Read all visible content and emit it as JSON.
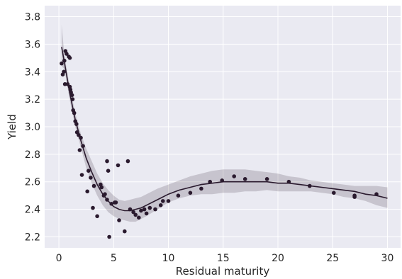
{
  "chart_data": {
    "type": "scatter",
    "xlabel": "Residual maturity",
    "ylabel": "Yield",
    "xlim": [
      -1.3,
      31.2
    ],
    "ylim": [
      2.12,
      3.88
    ],
    "xticks": [
      0,
      5,
      10,
      15,
      20,
      25,
      30
    ],
    "yticks": [
      2.2,
      2.4,
      2.6,
      2.8,
      3.0,
      3.2,
      3.4,
      3.6,
      3.8
    ],
    "grid": true,
    "style": "seaborn-darkgrid",
    "colors": {
      "background": "#eaeaf2",
      "points": "#2a1a2e",
      "line": "#2a1a2e",
      "band": "#2a1a2e"
    },
    "points": [
      [
        0.25,
        3.46
      ],
      [
        0.35,
        3.38
      ],
      [
        0.45,
        3.4
      ],
      [
        0.5,
        3.48
      ],
      [
        0.55,
        3.31
      ],
      [
        0.6,
        3.55
      ],
      [
        0.7,
        3.53
      ],
      [
        0.8,
        3.31
      ],
      [
        0.9,
        3.51
      ],
      [
        1.0,
        3.5
      ],
      [
        1.0,
        3.29
      ],
      [
        1.05,
        3.27
      ],
      [
        1.1,
        3.25
      ],
      [
        1.2,
        3.23
      ],
      [
        1.25,
        3.2
      ],
      [
        1.3,
        3.12
      ],
      [
        1.4,
        3.1
      ],
      [
        1.5,
        3.04
      ],
      [
        1.6,
        3.02
      ],
      [
        1.65,
        2.96
      ],
      [
        1.8,
        2.94
      ],
      [
        1.9,
        2.83
      ],
      [
        2.0,
        2.92
      ],
      [
        2.2,
        2.86
      ],
      [
        2.1,
        2.65
      ],
      [
        2.6,
        2.53
      ],
      [
        2.7,
        2.68
      ],
      [
        2.9,
        2.63
      ],
      [
        3.1,
        2.41
      ],
      [
        3.2,
        2.57
      ],
      [
        3.5,
        2.35
      ],
      [
        3.8,
        2.58
      ],
      [
        3.9,
        2.56
      ],
      [
        4.1,
        2.5
      ],
      [
        4.2,
        2.51
      ],
      [
        4.4,
        2.75
      ],
      [
        4.4,
        2.47
      ],
      [
        4.5,
        2.68
      ],
      [
        4.6,
        2.2
      ],
      [
        4.8,
        2.44
      ],
      [
        5.1,
        2.45
      ],
      [
        5.2,
        2.45
      ],
      [
        5.4,
        2.72
      ],
      [
        5.5,
        2.32
      ],
      [
        6.0,
        2.24
      ],
      [
        6.3,
        2.75
      ],
      [
        6.5,
        2.4
      ],
      [
        6.8,
        2.38
      ],
      [
        7.0,
        2.36
      ],
      [
        7.3,
        2.34
      ],
      [
        7.5,
        2.39
      ],
      [
        7.8,
        2.4
      ],
      [
        8.0,
        2.37
      ],
      [
        8.3,
        2.41
      ],
      [
        8.8,
        2.4
      ],
      [
        9.3,
        2.43
      ],
      [
        9.5,
        2.46
      ],
      [
        10.0,
        2.46
      ],
      [
        10.9,
        2.5
      ],
      [
        12.0,
        2.52
      ],
      [
        13.0,
        2.55
      ],
      [
        13.8,
        2.6
      ],
      [
        14.9,
        2.61
      ],
      [
        16.0,
        2.64
      ],
      [
        17.0,
        2.62
      ],
      [
        19.0,
        2.62
      ],
      [
        21.0,
        2.6
      ],
      [
        22.9,
        2.57
      ],
      [
        25.1,
        2.52
      ],
      [
        27.0,
        2.5
      ],
      [
        27.0,
        2.49
      ],
      [
        29.0,
        2.51
      ]
    ],
    "fit": {
      "x": [
        0.25,
        0.5,
        1,
        1.5,
        2,
        2.5,
        3,
        3.5,
        4,
        4.5,
        5,
        5.5,
        6,
        6.5,
        7,
        7.5,
        8,
        9,
        10,
        11,
        12,
        13,
        14,
        15,
        16,
        17,
        18,
        19,
        20,
        21,
        22,
        23,
        24,
        25,
        26,
        27,
        28,
        29,
        30
      ],
      "y": [
        3.58,
        3.47,
        3.24,
        3.05,
        2.9,
        2.77,
        2.67,
        2.58,
        2.51,
        2.46,
        2.42,
        2.4,
        2.39,
        2.39,
        2.4,
        2.41,
        2.43,
        2.47,
        2.51,
        2.54,
        2.56,
        2.58,
        2.59,
        2.6,
        2.6,
        2.6,
        2.6,
        2.6,
        2.59,
        2.59,
        2.58,
        2.57,
        2.56,
        2.55,
        2.54,
        2.53,
        2.51,
        2.5,
        2.48
      ],
      "upper": [
        3.74,
        3.52,
        3.29,
        3.1,
        2.95,
        2.84,
        2.75,
        2.66,
        2.59,
        2.54,
        2.5,
        2.47,
        2.46,
        2.47,
        2.48,
        2.49,
        2.51,
        2.55,
        2.58,
        2.61,
        2.64,
        2.66,
        2.68,
        2.69,
        2.69,
        2.69,
        2.68,
        2.67,
        2.66,
        2.64,
        2.63,
        2.61,
        2.6,
        2.59,
        2.58,
        2.57,
        2.57,
        2.57,
        2.56
      ],
      "lower": [
        3.44,
        3.42,
        3.19,
        3.0,
        2.85,
        2.7,
        2.59,
        2.5,
        2.43,
        2.38,
        2.35,
        2.33,
        2.32,
        2.31,
        2.31,
        2.33,
        2.35,
        2.4,
        2.45,
        2.48,
        2.5,
        2.51,
        2.51,
        2.52,
        2.52,
        2.53,
        2.53,
        2.54,
        2.53,
        2.53,
        2.53,
        2.53,
        2.52,
        2.51,
        2.49,
        2.48,
        2.46,
        2.43,
        2.41
      ]
    }
  }
}
